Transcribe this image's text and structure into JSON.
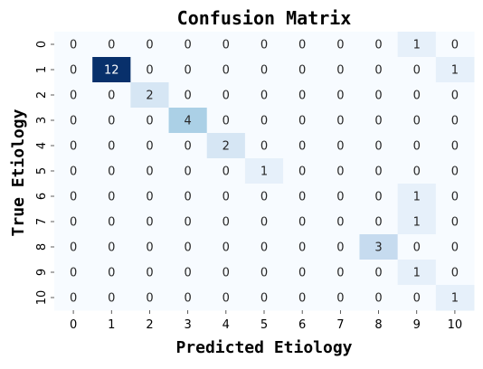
{
  "chart_data": {
    "type": "heatmap",
    "title": "Confusion Matrix",
    "xlabel": "Predicted Etiology",
    "ylabel": "True Etiology",
    "x_categories": [
      "0",
      "1",
      "2",
      "3",
      "4",
      "5",
      "6",
      "7",
      "8",
      "9",
      "10"
    ],
    "y_categories": [
      "0",
      "1",
      "2",
      "3",
      "4",
      "5",
      "6",
      "7",
      "8",
      "9",
      "10"
    ],
    "values": [
      [
        0,
        0,
        0,
        0,
        0,
        0,
        0,
        0,
        0,
        1,
        0
      ],
      [
        0,
        12,
        0,
        0,
        0,
        0,
        0,
        0,
        0,
        0,
        1
      ],
      [
        0,
        0,
        2,
        0,
        0,
        0,
        0,
        0,
        0,
        0,
        0
      ],
      [
        0,
        0,
        0,
        4,
        0,
        0,
        0,
        0,
        0,
        0,
        0
      ],
      [
        0,
        0,
        0,
        0,
        2,
        0,
        0,
        0,
        0,
        0,
        0
      ],
      [
        0,
        0,
        0,
        0,
        0,
        1,
        0,
        0,
        0,
        0,
        0
      ],
      [
        0,
        0,
        0,
        0,
        0,
        0,
        0,
        0,
        0,
        1,
        0
      ],
      [
        0,
        0,
        0,
        0,
        0,
        0,
        0,
        0,
        0,
        1,
        0
      ],
      [
        0,
        0,
        0,
        0,
        0,
        0,
        0,
        0,
        3,
        0,
        0
      ],
      [
        0,
        0,
        0,
        0,
        0,
        0,
        0,
        0,
        0,
        1,
        0
      ],
      [
        0,
        0,
        0,
        0,
        0,
        0,
        0,
        0,
        0,
        0,
        1
      ]
    ],
    "colormap": "Blues",
    "color_range": [
      0,
      12
    ],
    "annotations": true,
    "colorbar": false,
    "grid": false
  }
}
